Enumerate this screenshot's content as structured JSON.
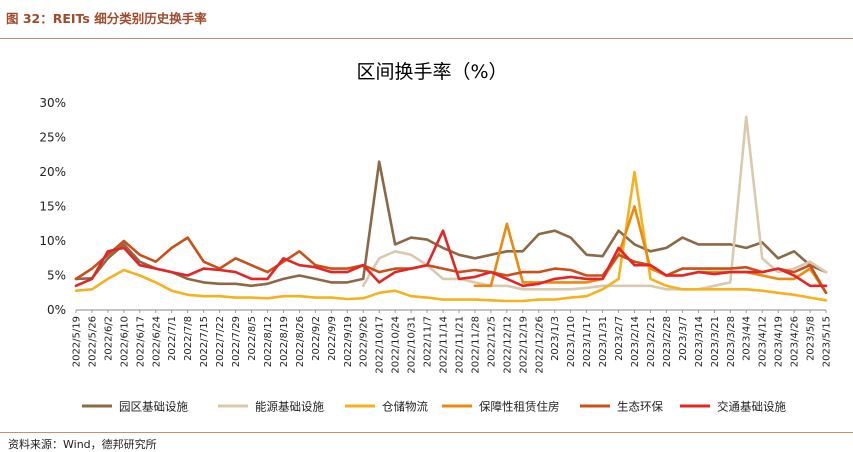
{
  "header": {
    "figure_title": "图 32：REITs 细分类别历史换手率"
  },
  "footer": {
    "source": "资料来源：Wind，德邦研究所"
  },
  "chart_data": {
    "type": "line",
    "title": "区间换手率（%）",
    "xlabel": "",
    "ylabel": "",
    "ylim": [
      0,
      30
    ],
    "y_ticks": [
      "0%",
      "5%",
      "10%",
      "15%",
      "20%",
      "25%",
      "30%"
    ],
    "grid": false,
    "legend_position": "bottom",
    "x": [
      "2022/5/19",
      "2022/5/26",
      "2022/6/2",
      "2022/6/10",
      "2022/6/17",
      "2022/6/24",
      "2022/7/1",
      "2022/7/8",
      "2022/7/15",
      "2022/7/22",
      "2022/7/29",
      "2022/8/5",
      "2022/8/12",
      "2022/8/19",
      "2022/8/26",
      "2022/9/2",
      "2022/9/9",
      "2022/9/19",
      "2022/9/26",
      "2022/10/17",
      "2022/10/24",
      "2022/10/31",
      "2022/11/7",
      "2022/11/14",
      "2022/11/21",
      "2022/11/28",
      "2022/12/5",
      "2022/12/12",
      "2022/12/19",
      "2022/12/26",
      "2023/1/3",
      "2023/1/10",
      "2023/1/17",
      "2023/1/31",
      "2023/2/7",
      "2023/2/14",
      "2023/2/21",
      "2023/2/28",
      "2023/3/7",
      "2023/3/14",
      "2023/3/21",
      "2023/3/28",
      "2023/4/4",
      "2023/4/12",
      "2023/4/19",
      "2023/4/26",
      "2023/5/8",
      "2023/5/15"
    ],
    "series": [
      {
        "name": "园区基础设施",
        "color": "#8b6846",
        "values": [
          4.5,
          4.6,
          7.5,
          9.5,
          7,
          6,
          5.5,
          4.5,
          4,
          3.8,
          3.8,
          3.5,
          3.8,
          4.5,
          5,
          4.5,
          4,
          4,
          4.5,
          21.5,
          9.5,
          10.5,
          10.2,
          9,
          8,
          7.5,
          8,
          8.5,
          8.5,
          11,
          11.5,
          10.5,
          8,
          7.8,
          11.5,
          9.5,
          8.5,
          9,
          10.5,
          9.5,
          9.5,
          9.5,
          9,
          9.8,
          7.5,
          8.5,
          6.5,
          5.5
        ]
      },
      {
        "name": "能源基础设施",
        "color": "#d9c9ad",
        "values": [
          null,
          null,
          null,
          null,
          null,
          null,
          null,
          null,
          null,
          null,
          null,
          null,
          null,
          null,
          null,
          null,
          null,
          null,
          3.5,
          7.5,
          8.5,
          8,
          6.5,
          4.5,
          4.5,
          4,
          3.5,
          3.5,
          3,
          3,
          3,
          3,
          3.2,
          3.5,
          3.5,
          3.5,
          3.5,
          3,
          3,
          3,
          3.5,
          4,
          28,
          7.5,
          5.5,
          6,
          7,
          5.5
        ]
      },
      {
        "name": "仓储物流",
        "color": "#f5b21e",
        "values": [
          2.8,
          3,
          4.5,
          5.8,
          5,
          4,
          2.8,
          2.2,
          2,
          2,
          1.8,
          1.8,
          1.7,
          2,
          2,
          1.8,
          1.8,
          1.6,
          1.7,
          2.5,
          2.8,
          2,
          1.8,
          1.5,
          1.5,
          1.5,
          1.4,
          1.3,
          1.3,
          1.5,
          1.5,
          1.8,
          2,
          3,
          4.5,
          20,
          4.5,
          3.5,
          3,
          3,
          3,
          3,
          3,
          2.8,
          2.5,
          2.2,
          1.8,
          1.4
        ]
      },
      {
        "name": "保障性租赁住房",
        "color": "#ec8a0f",
        "values": [
          null,
          null,
          null,
          null,
          null,
          null,
          null,
          null,
          null,
          null,
          null,
          null,
          null,
          null,
          null,
          null,
          null,
          null,
          null,
          null,
          null,
          null,
          null,
          null,
          null,
          3.5,
          3.5,
          12.5,
          4,
          4,
          4,
          4,
          4,
          4.5,
          8,
          15,
          6,
          5,
          5,
          5.5,
          5.5,
          5.5,
          5.5,
          5,
          4.5,
          4.5,
          6,
          2.5
        ]
      },
      {
        "name": "生态环保",
        "color": "#c8501a",
        "values": [
          4.5,
          6,
          8,
          10,
          8,
          7,
          9,
          10.5,
          7,
          6,
          7.5,
          6.5,
          5.5,
          7,
          8.5,
          6.5,
          6,
          6,
          6.5,
          5.5,
          6,
          6,
          6.5,
          6,
          5.5,
          5.8,
          5.5,
          5,
          5.5,
          5.5,
          6,
          5.8,
          5,
          5,
          8,
          7,
          6.5,
          5,
          6,
          6,
          6,
          6,
          6.2,
          5.5,
          6,
          5.5,
          6.5,
          2.5
        ]
      },
      {
        "name": "交通基础设施",
        "color": "#e42525",
        "values": [
          3.5,
          4.5,
          8.5,
          9,
          6.5,
          6,
          5.5,
          5,
          6,
          5.8,
          5.5,
          4.5,
          4.5,
          7.5,
          6.5,
          6.2,
          5.5,
          5.5,
          6.5,
          4,
          5.5,
          6,
          6.5,
          11.5,
          4.5,
          4.8,
          5.5,
          4.5,
          3.5,
          3.8,
          4.5,
          4.8,
          4.5,
          4.5,
          9,
          6.5,
          6.5,
          5,
          5,
          5.5,
          5.2,
          5.5,
          5.5,
          5.5,
          6,
          5,
          3.5,
          3.5
        ]
      }
    ]
  }
}
